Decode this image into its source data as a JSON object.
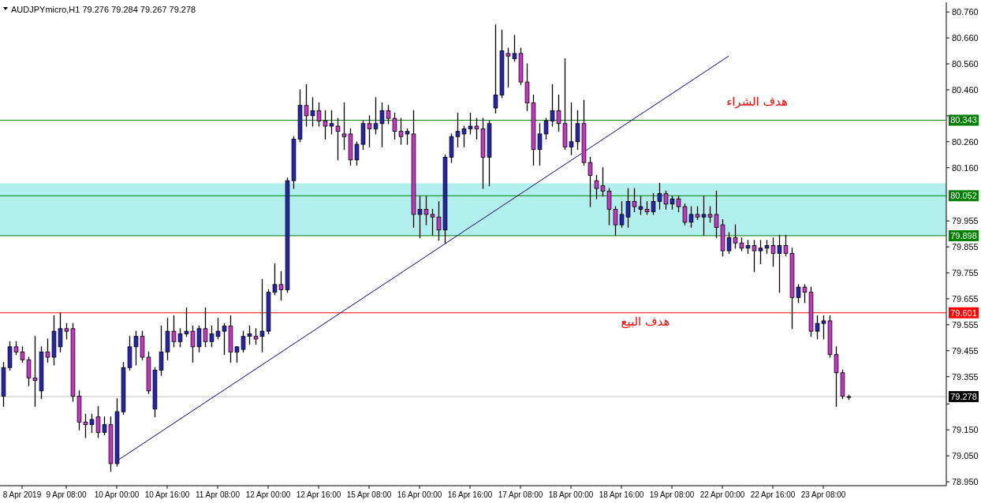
{
  "chart_data": {
    "type": "candlestick",
    "title": "AUDJPYmicro,H1  79.276 79.284 79.267 79.278",
    "categories": [
      null,
      null,
      null,
      "8 Apr 2019",
      null,
      null,
      null,
      null,
      null,
      null,
      "9 Apr 08:00",
      null,
      null,
      null,
      null,
      null,
      null,
      null,
      "10 Apr 00:00",
      null,
      null,
      null,
      null,
      null,
      null,
      null,
      "10 Apr 16:00",
      null,
      null,
      null,
      null,
      null,
      null,
      null,
      "11 Apr 08:00",
      null,
      null,
      null,
      null,
      null,
      null,
      null,
      "12 Apr 00:00",
      null,
      null,
      null,
      null,
      null,
      null,
      null,
      "12 Apr 16:00",
      null,
      null,
      null,
      null,
      null,
      null,
      null,
      "15 Apr 08:00",
      null,
      null,
      null,
      null,
      null,
      null,
      null,
      "16 Apr 00:00",
      null,
      null,
      null,
      null,
      null,
      null,
      null,
      "16 Apr 16:00",
      null,
      null,
      null,
      null,
      null,
      null,
      null,
      "17 Apr 08:00",
      null,
      null,
      null,
      null,
      null,
      null,
      null,
      "18 Apr 00:00",
      null,
      null,
      null,
      null,
      null,
      null,
      null,
      "18 Apr 16:00",
      null,
      null,
      null,
      null,
      null,
      null,
      null,
      "19 Apr 08:00",
      null,
      null,
      null,
      null,
      null,
      null,
      null,
      "22 Apr 00:00",
      null,
      null,
      null,
      null,
      null,
      null,
      null,
      "22 Apr 16:00",
      null,
      null,
      null,
      null,
      null,
      null,
      null,
      "23 Apr 08:00",
      null,
      null,
      null,
      null,
      null,
      null,
      null,
      null,
      null,
      null,
      null,
      null,
      null,
      null,
      null,
      null,
      null,
      null,
      null
    ],
    "ohlc": [
      [
        79.28,
        79.41,
        79.24,
        79.39
      ],
      [
        79.39,
        79.49,
        79.38,
        79.47
      ],
      [
        79.47,
        79.49,
        79.44,
        79.45
      ],
      [
        79.45,
        79.47,
        79.41,
        79.42
      ],
      [
        79.42,
        79.43,
        79.32,
        79.35
      ],
      [
        79.35,
        79.51,
        79.24,
        79.34
      ],
      [
        79.3,
        79.47,
        79.27,
        79.45
      ],
      [
        79.45,
        79.5,
        79.41,
        79.43
      ],
      [
        79.43,
        79.59,
        79.4,
        79.53
      ],
      [
        79.47,
        79.6,
        79.45,
        79.54
      ],
      [
        79.54,
        79.56,
        79.5,
        79.53
      ],
      [
        79.54,
        79.56,
        79.26,
        79.28
      ],
      [
        79.28,
        79.3,
        79.15,
        79.18
      ],
      [
        79.18,
        79.21,
        79.12,
        79.17
      ],
      [
        79.17,
        79.21,
        79.14,
        79.19
      ],
      [
        79.2,
        79.24,
        79.12,
        79.14
      ],
      [
        79.14,
        79.2,
        79.13,
        79.17
      ],
      [
        79.17,
        79.2,
        78.99,
        79.02
      ],
      [
        79.02,
        79.27,
        79.01,
        79.22
      ],
      [
        79.22,
        79.41,
        79.21,
        79.39
      ],
      [
        79.39,
        79.51,
        79.38,
        79.47
      ],
      [
        79.47,
        79.53,
        79.4,
        79.51
      ],
      [
        79.51,
        79.53,
        79.42,
        79.43
      ],
      [
        79.43,
        79.45,
        79.29,
        79.3
      ],
      [
        79.23,
        79.39,
        79.2,
        79.38
      ],
      [
        79.38,
        79.55,
        79.36,
        79.45
      ],
      [
        79.45,
        79.58,
        79.42,
        79.53
      ],
      [
        79.53,
        79.59,
        79.47,
        79.49
      ],
      [
        79.49,
        79.54,
        79.47,
        79.52
      ],
      [
        79.52,
        79.62,
        79.51,
        79.53
      ],
      [
        79.53,
        79.55,
        79.41,
        79.47
      ],
      [
        79.47,
        79.55,
        79.45,
        79.54
      ],
      [
        79.54,
        79.62,
        79.47,
        79.49
      ],
      [
        79.49,
        79.55,
        79.47,
        79.52
      ],
      [
        79.51,
        79.58,
        79.5,
        79.53
      ],
      [
        79.53,
        79.56,
        79.44,
        79.55
      ],
      [
        79.55,
        79.59,
        79.41,
        79.45
      ],
      [
        79.45,
        79.47,
        79.41,
        79.47
      ],
      [
        79.46,
        79.53,
        79.45,
        79.51
      ],
      [
        79.51,
        79.55,
        79.48,
        79.52
      ],
      [
        79.51,
        79.54,
        79.48,
        79.5
      ],
      [
        79.51,
        79.73,
        79.45,
        79.53
      ],
      [
        79.53,
        79.69,
        79.52,
        79.68
      ],
      [
        79.68,
        79.79,
        79.67,
        79.71
      ],
      [
        79.71,
        79.76,
        79.65,
        79.69
      ],
      [
        79.69,
        80.12,
        79.68,
        80.11
      ],
      [
        80.11,
        80.28,
        80.08,
        80.27
      ],
      [
        80.27,
        80.46,
        80.26,
        80.4
      ],
      [
        80.4,
        80.48,
        80.32,
        80.36
      ],
      [
        80.36,
        80.43,
        80.32,
        80.38
      ],
      [
        80.38,
        80.41,
        80.32,
        80.34
      ],
      [
        80.34,
        80.38,
        80.27,
        80.32
      ],
      [
        80.32,
        80.38,
        80.29,
        80.33
      ],
      [
        80.32,
        80.35,
        80.19,
        80.3
      ],
      [
        80.29,
        80.41,
        80.23,
        80.28
      ],
      [
        80.29,
        80.31,
        80.17,
        80.19
      ],
      [
        80.19,
        80.26,
        80.17,
        80.25
      ],
      [
        80.25,
        80.34,
        80.23,
        80.33
      ],
      [
        80.33,
        80.36,
        80.24,
        80.31
      ],
      [
        80.31,
        80.43,
        80.29,
        80.33
      ],
      [
        80.33,
        80.41,
        80.24,
        80.38
      ],
      [
        80.38,
        80.4,
        80.33,
        80.35
      ],
      [
        80.35,
        80.37,
        80.27,
        80.3
      ],
      [
        80.3,
        80.35,
        80.25,
        80.28
      ],
      [
        80.29,
        80.31,
        80.25,
        80.3
      ],
      [
        80.29,
        80.38,
        79.93,
        79.98
      ],
      [
        79.98,
        80.05,
        79.89,
        80.0
      ],
      [
        80.0,
        80.05,
        79.94,
        79.98
      ],
      [
        79.98,
        80.0,
        79.9,
        79.97
      ],
      [
        79.97,
        80.03,
        79.88,
        79.92
      ],
      [
        79.92,
        80.21,
        79.87,
        80.2
      ],
      [
        80.2,
        80.29,
        80.18,
        80.28
      ],
      [
        80.28,
        80.37,
        80.24,
        80.3
      ],
      [
        80.29,
        80.32,
        80.24,
        80.31
      ],
      [
        80.31,
        80.37,
        80.29,
        80.32
      ],
      [
        80.32,
        80.35,
        80.27,
        80.31
      ],
      [
        80.31,
        80.35,
        80.08,
        80.2
      ],
      [
        80.2,
        80.34,
        80.09,
        80.33
      ],
      [
        80.39,
        80.71,
        80.37,
        80.44
      ],
      [
        80.44,
        80.69,
        80.43,
        80.61
      ],
      [
        80.6,
        80.62,
        80.47,
        80.59
      ],
      [
        80.58,
        80.67,
        80.57,
        80.6
      ],
      [
        80.6,
        80.62,
        80.48,
        80.49
      ],
      [
        80.49,
        80.56,
        80.38,
        80.41
      ],
      [
        80.41,
        80.44,
        80.17,
        80.23
      ],
      [
        80.23,
        80.33,
        80.17,
        80.29
      ],
      [
        80.29,
        80.35,
        80.27,
        80.34
      ],
      [
        80.34,
        80.48,
        80.32,
        80.38
      ],
      [
        80.38,
        80.44,
        80.3,
        80.33
      ],
      [
        80.33,
        80.58,
        80.23,
        80.24
      ],
      [
        80.24,
        80.41,
        80.21,
        80.26
      ],
      [
        80.26,
        80.38,
        80.23,
        80.33
      ],
      [
        80.33,
        80.42,
        80.17,
        80.18
      ],
      [
        80.18,
        80.2,
        80.01,
        80.13
      ],
      [
        80.11,
        80.13,
        80.04,
        80.08
      ],
      [
        80.09,
        80.16,
        80.05,
        80.07
      ],
      [
        80.07,
        80.08,
        79.94,
        80.0
      ],
      [
        80.0,
        80.01,
        79.9,
        79.94
      ],
      [
        79.94,
        80.03,
        79.93,
        79.98
      ],
      [
        79.97,
        80.08,
        79.93,
        80.03
      ],
      [
        80.03,
        80.08,
        79.99,
        80.01
      ],
      [
        80.0,
        80.05,
        79.98,
        80.01
      ],
      [
        80.0,
        80.03,
        79.98,
        79.99
      ],
      [
        79.99,
        80.06,
        79.98,
        80.03
      ],
      [
        80.03,
        80.1,
        80.0,
        80.06
      ],
      [
        80.06,
        80.07,
        80.0,
        80.02
      ],
      [
        80.02,
        80.05,
        80.0,
        80.04
      ],
      [
        80.04,
        80.05,
        79.99,
        80.01
      ],
      [
        80.01,
        80.02,
        79.94,
        79.95
      ],
      [
        79.95,
        80.01,
        79.93,
        79.98
      ],
      [
        79.98,
        80.01,
        79.96,
        79.97
      ],
      [
        79.97,
        80.05,
        79.9,
        79.98
      ],
      [
        79.98,
        80.01,
        79.95,
        79.97
      ],
      [
        79.98,
        80.07,
        79.89,
        79.93
      ],
      [
        79.94,
        79.96,
        79.82,
        79.84
      ],
      [
        79.84,
        79.91,
        79.83,
        79.89
      ],
      [
        79.89,
        79.94,
        79.85,
        79.87
      ],
      [
        79.87,
        79.89,
        79.84,
        79.85
      ],
      [
        79.85,
        79.88,
        79.83,
        79.86
      ],
      [
        79.86,
        79.88,
        79.76,
        79.84
      ],
      [
        79.84,
        79.88,
        79.79,
        79.85
      ],
      [
        79.85,
        79.88,
        79.83,
        79.86
      ],
      [
        79.86,
        79.89,
        79.78,
        79.83
      ],
      [
        79.83,
        79.9,
        79.68,
        79.86
      ],
      [
        79.86,
        79.9,
        79.82,
        79.83
      ],
      [
        79.83,
        79.85,
        79.54,
        79.66
      ],
      [
        79.66,
        79.71,
        79.64,
        79.7
      ],
      [
        79.7,
        79.71,
        79.64,
        79.68
      ],
      [
        79.68,
        79.7,
        79.51,
        79.53
      ],
      [
        79.53,
        79.59,
        79.5,
        79.56
      ],
      [
        79.56,
        79.59,
        79.5,
        79.57
      ],
      [
        79.57,
        79.59,
        79.43,
        79.44
      ],
      [
        79.44,
        79.47,
        79.24,
        79.37
      ],
      [
        79.37,
        79.38,
        79.27,
        79.28
      ],
      [
        79.276,
        79.284,
        79.267,
        79.278
      ],
      null,
      null,
      null,
      null,
      null,
      null,
      null,
      null,
      null,
      null,
      null,
      null,
      null,
      null,
      null
    ],
    "series": [
      {
        "type": "line",
        "color": "#000080",
        "values": [
          null,
          null,
          null,
          null,
          null,
          null,
          null,
          null,
          null,
          null,
          null,
          null,
          null,
          null,
          null,
          null,
          null,
          null,
          79.03,
          null,
          null,
          null,
          null,
          null,
          null,
          null,
          null,
          null,
          null,
          null,
          null,
          null,
          null,
          null,
          null,
          null,
          null,
          null,
          null,
          null,
          null,
          null,
          null,
          null,
          null,
          null,
          null,
          null,
          null,
          null,
          null,
          null,
          null,
          null,
          null,
          null,
          null,
          null,
          null,
          null,
          null,
          null,
          null,
          null,
          null,
          null,
          null,
          null,
          null,
          null,
          null,
          null,
          null,
          null,
          null,
          null,
          null,
          null,
          null,
          null,
          null,
          null,
          null,
          null,
          null,
          null,
          null,
          null,
          null,
          null,
          null,
          null,
          null,
          null,
          null,
          null,
          null,
          null,
          null,
          null,
          null,
          null,
          null,
          null,
          null,
          null,
          null,
          null,
          null,
          null,
          null,
          null,
          null,
          null,
          null,
          80.59,
          null,
          null,
          null,
          null,
          null,
          null,
          null,
          null,
          null,
          null,
          null,
          null,
          null,
          null,
          null,
          null,
          null,
          null,
          null,
          null,
          null,
          null,
          null,
          null,
          null,
          null,
          null,
          null,
          null,
          null,
          null,
          null,
          null,
          null
        ]
      }
    ],
    "ylim": [
      78.935,
      80.797
    ],
    "yticks": [
      {
        "value": 80.76,
        "label": "80.760"
      },
      {
        "value": 80.66,
        "label": "80.660"
      },
      {
        "value": 80.56,
        "label": "80.560"
      },
      {
        "value": 80.46,
        "label": "80.460"
      },
      {
        "value": 80.36,
        "label": null
      },
      {
        "value": 80.26,
        "label": "80.260"
      },
      {
        "value": 80.16,
        "label": "80.160"
      },
      {
        "value": 79.955,
        "label": "79.955"
      },
      {
        "value": 79.855,
        "label": "79.855"
      },
      {
        "value": 79.755,
        "label": "79.755"
      },
      {
        "value": 79.655,
        "label": "79.655"
      },
      {
        "value": 79.555,
        "label": "79.555"
      },
      {
        "value": 79.455,
        "label": "79.455"
      },
      {
        "value": 79.355,
        "label": "79.355"
      },
      {
        "value": 79.25,
        "label": null
      },
      {
        "value": 79.15,
        "label": "79.150"
      },
      {
        "value": 79.05,
        "label": "79.050"
      },
      {
        "value": 78.95,
        "label": "78.950"
      }
    ],
    "bands": [
      {
        "axis": "y",
        "from": 79.898,
        "to": 80.1,
        "color": "#00cccc"
      }
    ],
    "ref_lines": [
      {
        "axis": "y",
        "value": 80.343,
        "label": "80.343",
        "color": "#008000"
      },
      {
        "axis": "y",
        "value": 80.052,
        "label": "80.052",
        "color": "#008000"
      },
      {
        "axis": "y",
        "value": 79.898,
        "label": "79.898",
        "color": "#008000"
      },
      {
        "axis": "y",
        "value": 79.601,
        "label": "79.601",
        "color": "#ff0000"
      },
      {
        "axis": "y",
        "value": 79.278,
        "label": "79.278",
        "color": "#c0c0c0"
      }
    ],
    "annotations": [
      "هدف الشراء",
      "هدف البيع"
    ],
    "grid": false
  }
}
